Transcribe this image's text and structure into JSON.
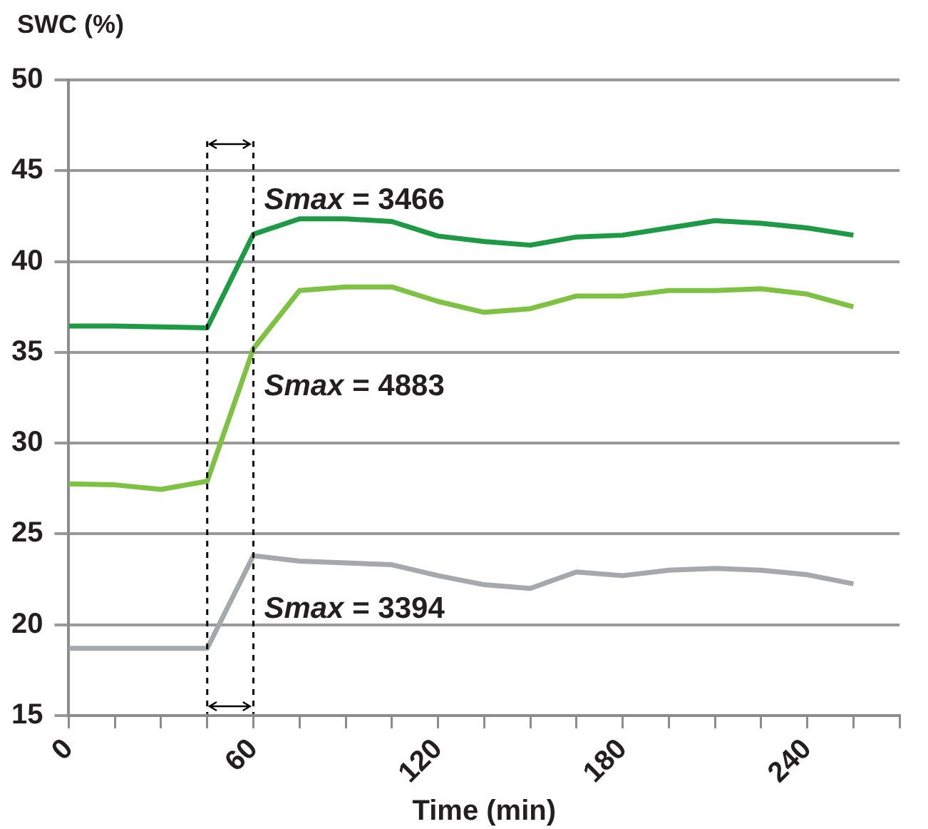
{
  "chart_data": {
    "type": "line",
    "xlabel": "Time (min)",
    "ylabel": "SWC (%)",
    "x": [
      0,
      15,
      30,
      45,
      60,
      75,
      90,
      105,
      120,
      135,
      150,
      165,
      180,
      195,
      210,
      225,
      240,
      255
    ],
    "series": [
      {
        "color": "#1e9a46",
        "values": [
          36.45,
          36.45,
          36.4,
          36.35,
          41.5,
          42.35,
          42.35,
          42.2,
          41.4,
          41.1,
          40.9,
          41.35,
          41.45,
          41.85,
          42.25,
          42.1,
          41.85,
          41.45
        ]
      },
      {
        "color": "#7dc242",
        "values": [
          27.75,
          27.7,
          27.45,
          27.9,
          35.2,
          38.4,
          38.6,
          38.6,
          37.8,
          37.2,
          37.4,
          38.1,
          38.1,
          38.4,
          38.4,
          38.5,
          38.2,
          37.5
        ]
      },
      {
        "color": "#a6a8ab",
        "values": [
          18.7,
          18.7,
          18.7,
          18.7,
          23.8,
          23.5,
          23.4,
          23.3,
          22.7,
          22.2,
          22.0,
          22.9,
          22.7,
          23.0,
          23.1,
          23.0,
          22.75,
          22.25
        ]
      }
    ],
    "xlim": [
      0,
      270
    ],
    "xticks": [
      0,
      {
        "value": 15,
        "label": null
      },
      {
        "value": 30,
        "label": null
      },
      {
        "value": 45,
        "label": null
      },
      60,
      {
        "value": 75,
        "label": null
      },
      {
        "value": 90,
        "label": null
      },
      {
        "value": 105,
        "label": null
      },
      120,
      {
        "value": 135,
        "label": null
      },
      {
        "value": 150,
        "label": null
      },
      {
        "value": 165,
        "label": null
      },
      180,
      {
        "value": 195,
        "label": null
      },
      {
        "value": 210,
        "label": null
      },
      {
        "value": 225,
        "label": null
      },
      240,
      {
        "value": 255,
        "label": null
      },
      {
        "value": 270,
        "label": null
      }
    ],
    "ylim": [
      15,
      50
    ],
    "yticks": [
      15,
      20,
      25,
      30,
      35,
      40,
      45,
      50
    ],
    "grid": "y",
    "marker": "none",
    "ref_lines": [
      {
        "axis": "x",
        "value": 45,
        "color": "#000000",
        "line_style": "dashed"
      },
      {
        "axis": "x",
        "value": 60,
        "color": "#000000",
        "line_style": "dashed"
      }
    ],
    "annotations": [
      "Smax = 3466",
      "Smax = 4883",
      "Smax = 3394"
    ]
  }
}
